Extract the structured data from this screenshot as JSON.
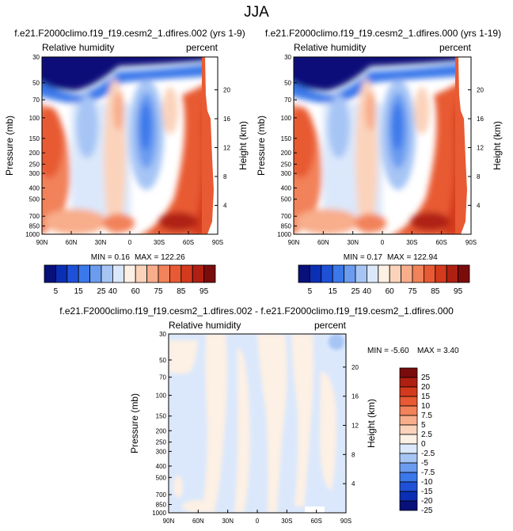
{
  "page_title": "JJA",
  "colors": {
    "abs_palette": [
      "#08107a",
      "#0b2fb4",
      "#1f51d8",
      "#3b78ea",
      "#6c9cf0",
      "#a6c5f5",
      "#dbe8fb",
      "#fdf0e4",
      "#fbd3bb",
      "#f8ad8b",
      "#f2825a",
      "#e85a33",
      "#d43a1d",
      "#b02012",
      "#7a0c0c"
    ],
    "diff_palette": [
      "#08107a",
      "#0b2fb4",
      "#1f51d8",
      "#3b78ea",
      "#6c9cf0",
      "#a6c5f5",
      "#dbe8fb",
      "#fdf0e4",
      "#fbd3bb",
      "#f8ad8b",
      "#f2825a",
      "#e85a33",
      "#d43a1d",
      "#b02012",
      "#7a0c0c"
    ]
  },
  "chart_data": [
    {
      "type": "heatmap",
      "title": "f.e21.F2000climo.f19_f19.cesm2_1.dfires.002 (yrs 1-9)",
      "left_title": "Relative humidity",
      "right_title": "percent",
      "ylabel": "Pressure (mb)",
      "y2label": "Height (km)",
      "x_ticks": [
        "90N",
        "60N",
        "30N",
        "0",
        "30S",
        "60S",
        "90S"
      ],
      "y_ticks": [
        "30",
        "50",
        "70",
        "100",
        "150",
        "200",
        "250",
        "300",
        "400",
        "500",
        "700",
        "850",
        "1000"
      ],
      "y2_ticks": [
        "20",
        "16",
        "12",
        "8",
        "4"
      ],
      "min_label": "MIN =  0.16",
      "max_label": "MAX = 122.26",
      "min_value": 0.16,
      "max_value": 122.26,
      "colorbar_labels": [
        "5",
        "15",
        "25",
        "40",
        "60",
        "75",
        "85",
        "95"
      ]
    },
    {
      "type": "heatmap",
      "title": "f.e21.F2000climo.f19_f19.cesm2_1.dfires.000 (yrs 1-19)",
      "left_title": "Relative humidity",
      "right_title": "percent",
      "ylabel": "Pressure (mb)",
      "y2label": "Height (km)",
      "x_ticks": [
        "90N",
        "60N",
        "30N",
        "0",
        "30S",
        "60S",
        "90S"
      ],
      "y_ticks": [
        "30",
        "50",
        "70",
        "100",
        "150",
        "200",
        "250",
        "300",
        "400",
        "500",
        "700",
        "850",
        "1000"
      ],
      "y2_ticks": [
        "20",
        "16",
        "12",
        "8",
        "4"
      ],
      "min_label": "MIN =  0.17",
      "max_label": "MAX = 122.94",
      "min_value": 0.17,
      "max_value": 122.94,
      "colorbar_labels": [
        "5",
        "15",
        "25",
        "40",
        "60",
        "75",
        "85",
        "95"
      ]
    },
    {
      "type": "heatmap",
      "title": "f.e21.F2000climo.f19_f19.cesm2_1.dfires.002 - f.e21.F2000climo.f19_f19.cesm2_1.dfires.000",
      "left_title": "Relative humidity",
      "right_title": "percent",
      "ylabel": "Pressure (mb)",
      "y2label": "Height (km)",
      "x_ticks": [
        "90N",
        "60N",
        "30N",
        "0",
        "30S",
        "60S",
        "90S"
      ],
      "y_ticks": [
        "30",
        "50",
        "70",
        "100",
        "150",
        "200",
        "250",
        "300",
        "400",
        "500",
        "700",
        "850",
        "1000"
      ],
      "y2_ticks": [
        "20",
        "16",
        "12",
        "8",
        "4"
      ],
      "min_label": "MIN = -5.60",
      "max_label": "MAX =  3.40",
      "min_value": -5.6,
      "max_value": 3.4,
      "colorbar_labels": [
        "25",
        "20",
        "15",
        "10",
        "7.5",
        "5",
        "2.5",
        "0",
        "-2.5",
        "-5",
        "-7.5",
        "-10",
        "-15",
        "-20",
        "-25"
      ]
    }
  ]
}
